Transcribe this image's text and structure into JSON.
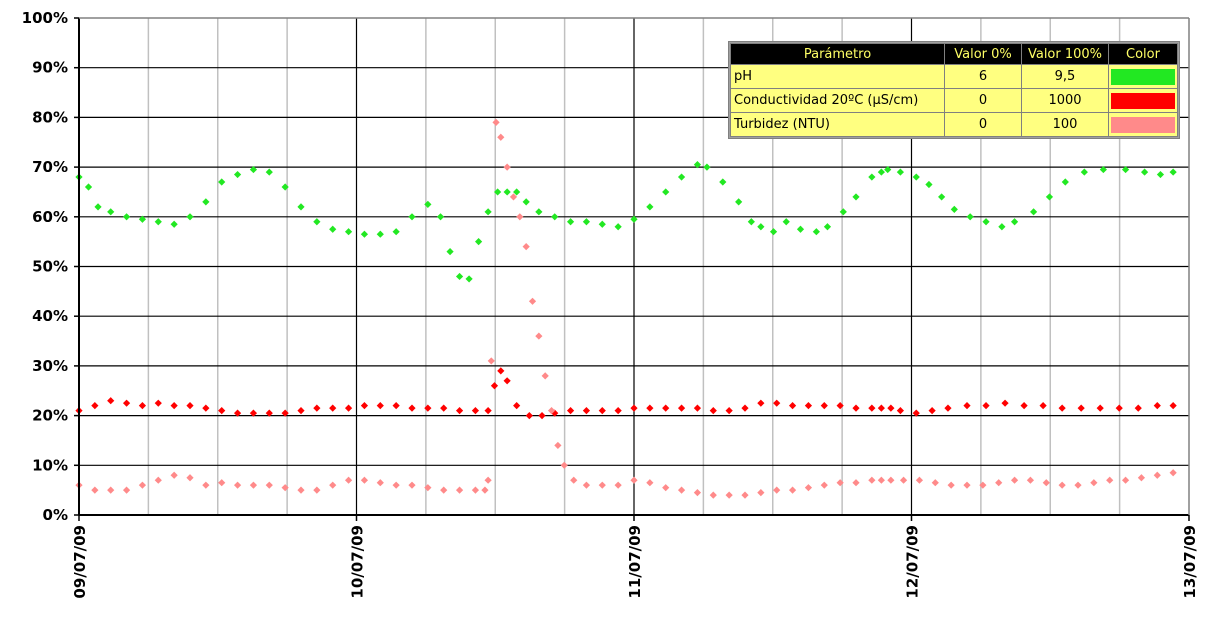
{
  "chart_data": {
    "type": "scatter",
    "title": "",
    "xlabel": "",
    "ylabel": "",
    "ylim": [
      0,
      100
    ],
    "y_tick_labels": [
      "0%",
      "10%",
      "20%",
      "30%",
      "40%",
      "50%",
      "60%",
      "70%",
      "80%",
      "90%",
      "100%"
    ],
    "x_tick_labels": [
      "09/07/09",
      "10/07/09",
      "11/07/09",
      "12/07/09",
      "13/07/09"
    ],
    "xlim": [
      "09/07/09",
      "13/07/09"
    ],
    "x_unit": "days from 09/07/09 00:00",
    "grid": true,
    "legend_position": "top-right",
    "legend": {
      "headers": [
        "Parámetro",
        "Valor 0%",
        "Valor 100%",
        "Color"
      ],
      "rows": [
        {
          "param": "pH",
          "v0": "6",
          "v100": "9,5",
          "color": "#22e822"
        },
        {
          "param": "Conductividad 20ºC (µS/cm)",
          "v0": "0",
          "v100": "1000",
          "color": "#ff0000"
        },
        {
          "param": "Turbidez (NTU)",
          "v0": "0",
          "v100": "100",
          "color": "#ff8a8a"
        }
      ]
    },
    "series": [
      {
        "name": "pH",
        "color": "#22e822",
        "points": [
          [
            0,
            68
          ],
          [
            0.06,
            66
          ],
          [
            0.12,
            62
          ],
          [
            0.2,
            61
          ],
          [
            0.3,
            60
          ],
          [
            0.4,
            59.5
          ],
          [
            0.5,
            59
          ],
          [
            0.6,
            58.5
          ],
          [
            0.7,
            60
          ],
          [
            0.8,
            63
          ],
          [
            0.9,
            67
          ],
          [
            1.0,
            68.5
          ],
          [
            1.1,
            69.5
          ],
          [
            1.2,
            69
          ],
          [
            1.3,
            66
          ],
          [
            1.4,
            62
          ],
          [
            1.5,
            59
          ],
          [
            1.6,
            57.5
          ],
          [
            1.7,
            57
          ],
          [
            1.8,
            56.5
          ],
          [
            1.9,
            56.5
          ],
          [
            2.0,
            57
          ],
          [
            2.1,
            60
          ],
          [
            2.2,
            62.5
          ],
          [
            2.28,
            60
          ],
          [
            2.34,
            53
          ],
          [
            2.4,
            48
          ],
          [
            2.46,
            47.5
          ],
          [
            2.52,
            55
          ],
          [
            2.58,
            61
          ],
          [
            2.64,
            65
          ],
          [
            2.7,
            65
          ],
          [
            2.76,
            65
          ],
          [
            2.82,
            63
          ],
          [
            2.9,
            61
          ],
          [
            3.0,
            60
          ],
          [
            3.1,
            59
          ],
          [
            3.2,
            59
          ],
          [
            3.3,
            58.5
          ],
          [
            3.4,
            58
          ],
          [
            3.5,
            59.5
          ],
          [
            3.6,
            62
          ],
          [
            3.7,
            65
          ],
          [
            3.8,
            68
          ],
          [
            3.9,
            70.5
          ],
          [
            3.96,
            70
          ],
          [
            4.06,
            67
          ],
          [
            4.16,
            63
          ],
          [
            4.24,
            59
          ],
          [
            4.3,
            58
          ],
          [
            4.38,
            57
          ],
          [
            4.46,
            59
          ],
          [
            4.55,
            57.5
          ],
          [
            4.65,
            57
          ],
          [
            4.72,
            58
          ],
          [
            4.82,
            61
          ],
          [
            4.9,
            64
          ],
          [
            5.0,
            68
          ],
          [
            5.06,
            69
          ],
          [
            5.1,
            69.5
          ],
          [
            5.18,
            69
          ],
          [
            5.28,
            68
          ],
          [
            5.36,
            66.5
          ],
          [
            5.44,
            64
          ],
          [
            5.52,
            61.5
          ],
          [
            5.62,
            60
          ],
          [
            5.72,
            59
          ],
          [
            5.82,
            58
          ],
          [
            5.9,
            59
          ],
          [
            6.02,
            61
          ],
          [
            6.12,
            64
          ],
          [
            6.22,
            67
          ],
          [
            6.34,
            69
          ],
          [
            6.46,
            69.5
          ],
          [
            6.6,
            69.5
          ],
          [
            6.72,
            69
          ],
          [
            6.82,
            68.5
          ],
          [
            6.9,
            69
          ]
        ]
      },
      {
        "name": "Conductividad 20ºC (µS/cm)",
        "color": "#ff0000",
        "points": [
          [
            0,
            21
          ],
          [
            0.1,
            22
          ],
          [
            0.2,
            23
          ],
          [
            0.3,
            22.5
          ],
          [
            0.4,
            22
          ],
          [
            0.5,
            22.5
          ],
          [
            0.6,
            22
          ],
          [
            0.7,
            22
          ],
          [
            0.8,
            21.5
          ],
          [
            0.9,
            21
          ],
          [
            1.0,
            20.5
          ],
          [
            1.1,
            20.5
          ],
          [
            1.2,
            20.5
          ],
          [
            1.3,
            20.5
          ],
          [
            1.4,
            21
          ],
          [
            1.5,
            21.5
          ],
          [
            1.6,
            21.5
          ],
          [
            1.7,
            21.5
          ],
          [
            1.8,
            22
          ],
          [
            1.9,
            22
          ],
          [
            2.0,
            22
          ],
          [
            2.1,
            21.5
          ],
          [
            2.2,
            21.5
          ],
          [
            2.3,
            21.5
          ],
          [
            2.4,
            21
          ],
          [
            2.5,
            21
          ],
          [
            2.58,
            21
          ],
          [
            2.62,
            26
          ],
          [
            2.66,
            29
          ],
          [
            2.7,
            27
          ],
          [
            2.76,
            22
          ],
          [
            2.84,
            20
          ],
          [
            2.92,
            20
          ],
          [
            3.0,
            20.5
          ],
          [
            3.1,
            21
          ],
          [
            3.2,
            21
          ],
          [
            3.3,
            21
          ],
          [
            3.4,
            21
          ],
          [
            3.5,
            21.5
          ],
          [
            3.6,
            21.5
          ],
          [
            3.7,
            21.5
          ],
          [
            3.8,
            21.5
          ],
          [
            3.9,
            21.5
          ],
          [
            4.0,
            21
          ],
          [
            4.1,
            21
          ],
          [
            4.2,
            21.5
          ],
          [
            4.3,
            22.5
          ],
          [
            4.4,
            22.5
          ],
          [
            4.5,
            22
          ],
          [
            4.6,
            22
          ],
          [
            4.7,
            22
          ],
          [
            4.8,
            22
          ],
          [
            4.9,
            21.5
          ],
          [
            5.0,
            21.5
          ],
          [
            5.06,
            21.5
          ],
          [
            5.12,
            21.5
          ],
          [
            5.18,
            21
          ],
          [
            5.28,
            20.5
          ],
          [
            5.38,
            21
          ],
          [
            5.48,
            21.5
          ],
          [
            5.6,
            22
          ],
          [
            5.72,
            22
          ],
          [
            5.84,
            22.5
          ],
          [
            5.96,
            22
          ],
          [
            6.08,
            22
          ],
          [
            6.2,
            21.5
          ],
          [
            6.32,
            21.5
          ],
          [
            6.44,
            21.5
          ],
          [
            6.56,
            21.5
          ],
          [
            6.68,
            21.5
          ],
          [
            6.8,
            22
          ],
          [
            6.9,
            22
          ]
        ]
      },
      {
        "name": "Turbidez (NTU)",
        "color": "#ff8a8a",
        "points": [
          [
            0,
            6
          ],
          [
            0.1,
            5
          ],
          [
            0.2,
            5
          ],
          [
            0.3,
            5
          ],
          [
            0.4,
            6
          ],
          [
            0.5,
            7
          ],
          [
            0.6,
            8
          ],
          [
            0.7,
            7.5
          ],
          [
            0.8,
            6
          ],
          [
            0.9,
            6.5
          ],
          [
            1.0,
            6
          ],
          [
            1.1,
            6
          ],
          [
            1.2,
            6
          ],
          [
            1.3,
            5.5
          ],
          [
            1.4,
            5
          ],
          [
            1.5,
            5
          ],
          [
            1.6,
            6
          ],
          [
            1.7,
            7
          ],
          [
            1.8,
            7
          ],
          [
            1.9,
            6.5
          ],
          [
            2.0,
            6
          ],
          [
            2.1,
            6
          ],
          [
            2.2,
            5.5
          ],
          [
            2.3,
            5
          ],
          [
            2.4,
            5
          ],
          [
            2.5,
            5
          ],
          [
            2.56,
            5
          ],
          [
            2.58,
            7
          ],
          [
            2.6,
            31
          ],
          [
            2.63,
            79
          ],
          [
            2.66,
            76
          ],
          [
            2.7,
            70
          ],
          [
            2.74,
            64
          ],
          [
            2.78,
            60
          ],
          [
            2.82,
            54
          ],
          [
            2.86,
            43
          ],
          [
            2.9,
            36
          ],
          [
            2.94,
            28
          ],
          [
            2.98,
            21
          ],
          [
            3.02,
            14
          ],
          [
            3.06,
            10
          ],
          [
            3.12,
            7
          ],
          [
            3.2,
            6
          ],
          [
            3.3,
            6
          ],
          [
            3.4,
            6
          ],
          [
            3.5,
            7
          ],
          [
            3.6,
            6.5
          ],
          [
            3.7,
            5.5
          ],
          [
            3.8,
            5
          ],
          [
            3.9,
            4.5
          ],
          [
            4.0,
            4
          ],
          [
            4.1,
            4
          ],
          [
            4.2,
            4
          ],
          [
            4.3,
            4.5
          ],
          [
            4.4,
            5
          ],
          [
            4.5,
            5
          ],
          [
            4.6,
            5.5
          ],
          [
            4.7,
            6
          ],
          [
            4.8,
            6.5
          ],
          [
            4.9,
            6.5
          ],
          [
            5.0,
            7
          ],
          [
            5.06,
            7
          ],
          [
            5.12,
            7
          ],
          [
            5.2,
            7
          ],
          [
            5.3,
            7
          ],
          [
            5.4,
            6.5
          ],
          [
            5.5,
            6
          ],
          [
            5.6,
            6
          ],
          [
            5.7,
            6
          ],
          [
            5.8,
            6.5
          ],
          [
            5.9,
            7
          ],
          [
            6.0,
            7
          ],
          [
            6.1,
            6.5
          ],
          [
            6.2,
            6
          ],
          [
            6.3,
            6
          ],
          [
            6.4,
            6.5
          ],
          [
            6.5,
            7
          ],
          [
            6.6,
            7
          ],
          [
            6.7,
            7.5
          ],
          [
            6.8,
            8
          ],
          [
            6.9,
            8.5
          ]
        ]
      }
    ]
  }
}
